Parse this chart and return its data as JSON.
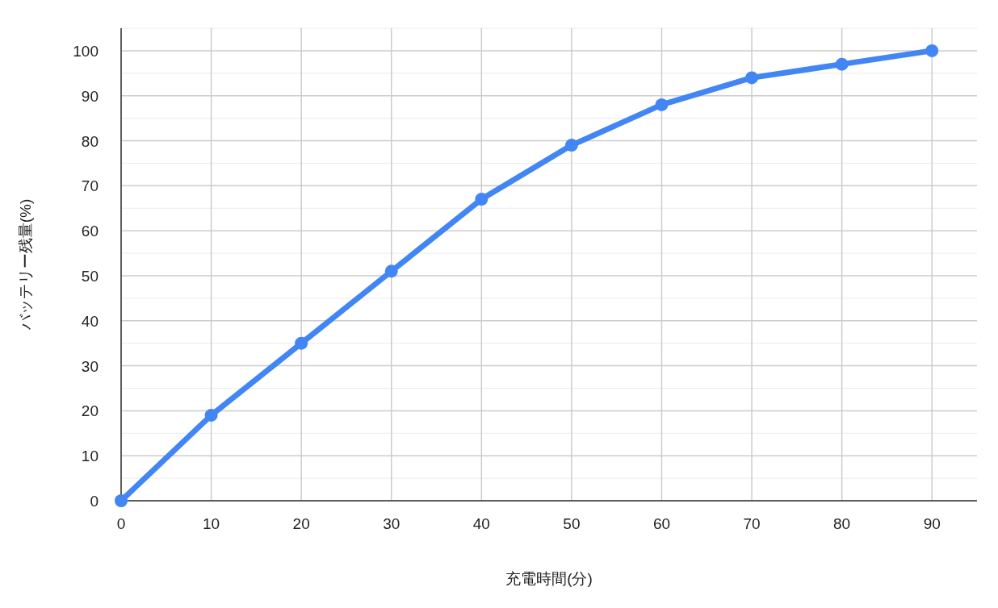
{
  "chart_data": {
    "type": "line",
    "xlabel": "充電時間(分)",
    "ylabel": "バッテリー残量(%)",
    "x": [
      0,
      10,
      20,
      30,
      40,
      50,
      60,
      70,
      80,
      90
    ],
    "series": [
      {
        "color": "#4285f4",
        "values": [
          0,
          19,
          35,
          51,
          67,
          79,
          88,
          94,
          97,
          100
        ]
      }
    ],
    "xlim": [
      0,
      95
    ],
    "xticks": [
      0,
      10,
      20,
      30,
      40,
      50,
      60,
      70,
      80,
      90
    ],
    "ylim": [
      0,
      105
    ],
    "yticks": [
      0,
      {
        "value": 5,
        "label": null
      },
      10,
      {
        "value": 15,
        "label": null
      },
      20,
      {
        "value": 25,
        "label": null
      },
      30,
      {
        "value": 35,
        "label": null
      },
      40,
      {
        "value": 45,
        "label": null
      },
      50,
      {
        "value": 55,
        "label": null
      },
      60,
      {
        "value": 65,
        "label": null
      },
      70,
      {
        "value": 75,
        "label": null
      },
      80,
      {
        "value": 85,
        "label": null
      },
      90,
      {
        "value": 95,
        "label": null
      },
      100,
      {
        "value": 105,
        "label": null
      }
    ],
    "grid": true,
    "marker": "circle",
    "line_style": "solid"
  }
}
